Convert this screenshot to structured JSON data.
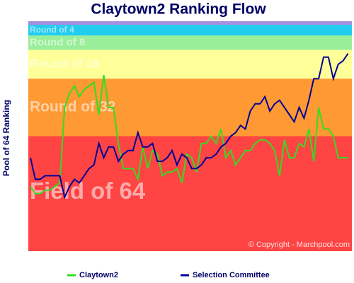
{
  "chart_data": {
    "type": "line",
    "title": "Claytown2 Ranking Flow",
    "y_label": "Pool of 64 Ranking",
    "annotation": "© Copyright - Marchpool.com",
    "ylim": [
      0,
      64
    ],
    "inverted": true,
    "bands": [
      {
        "label": null,
        "from": 0,
        "to": 1,
        "color": "#a68ee0"
      },
      {
        "label": "Round of 4",
        "from": 1,
        "to": 4,
        "color": "#22ccee"
      },
      {
        "label": "Round of 8",
        "from": 4,
        "to": 8,
        "color": "#99ee99"
      },
      {
        "label": "Round of 16",
        "from": 8,
        "to": 16,
        "color": "#ffff99"
      },
      {
        "label": "Round of 32",
        "from": 16,
        "to": 32,
        "color": "#ff9933"
      },
      {
        "label": "Field of 64",
        "from": 32,
        "to": 64,
        "color": "#ff4444"
      }
    ],
    "series": [
      {
        "name": "Claytown2",
        "color": "#33dd22",
        "values": [
          46,
          48,
          48,
          47,
          47,
          46,
          45,
          24,
          20,
          18,
          21,
          19,
          18,
          17,
          26,
          15,
          24,
          24,
          34,
          41,
          41,
          41,
          44,
          35,
          41,
          36,
          37,
          43,
          42,
          42,
          41,
          45,
          37,
          38,
          42,
          34,
          34,
          32,
          34,
          30,
          38,
          36,
          40,
          38,
          36,
          36,
          34,
          33,
          33,
          34,
          36,
          43,
          33,
          38,
          38,
          34,
          35,
          30,
          39,
          24,
          30,
          30,
          32,
          38,
          38,
          38
        ]
      },
      {
        "name": "Selection Committee",
        "color": "#000099",
        "values": [
          38,
          44,
          44,
          43,
          43,
          43,
          43,
          49,
          46,
          44,
          45,
          43,
          41,
          40,
          34,
          38,
          35,
          35,
          39,
          37,
          36,
          36,
          31,
          35,
          35,
          34,
          39,
          39,
          38,
          36,
          40,
          37,
          38,
          41,
          41,
          40,
          38,
          38,
          37,
          35,
          34,
          32,
          31,
          29,
          30,
          25,
          23,
          23,
          21,
          25,
          23,
          22,
          24,
          26,
          28,
          24,
          27,
          22,
          16,
          16,
          10,
          10,
          16,
          12,
          11,
          9
        ]
      }
    ]
  }
}
